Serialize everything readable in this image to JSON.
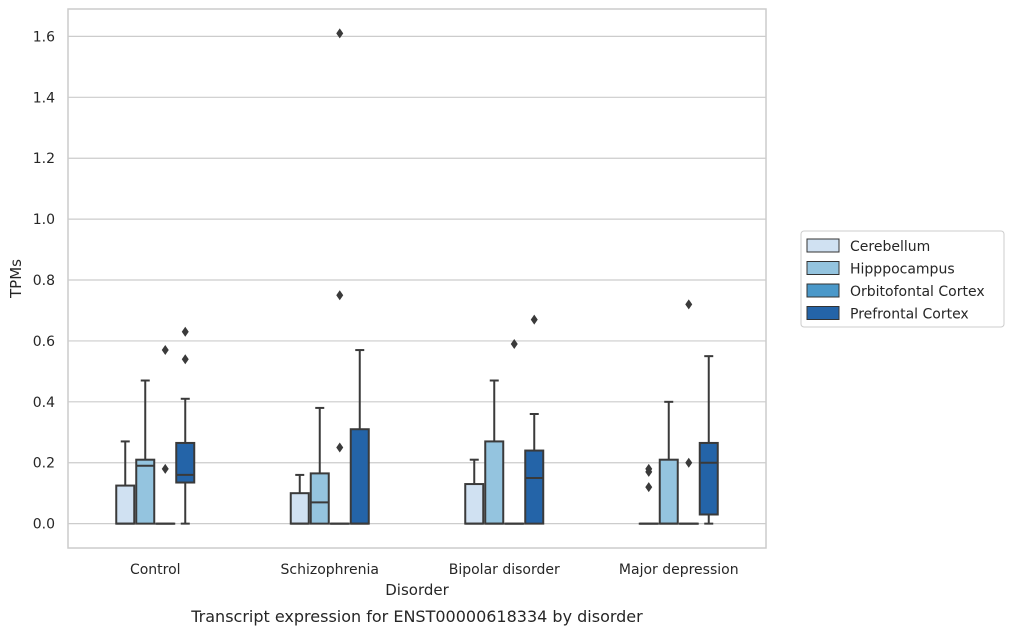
{
  "caption": "Transcript expression for ENST00000618334 by disorder",
  "chart_data": {
    "type": "box",
    "xlabel": "Disorder",
    "ylabel": "TPMs",
    "ylim": [
      -0.08,
      1.69
    ],
    "yticks": [
      0.0,
      0.2,
      0.4,
      0.6,
      0.8,
      1.0,
      1.2,
      1.4,
      1.6
    ],
    "grid": true,
    "legend_placement": "right-center",
    "categories": [
      "Control",
      "Schizophrenia",
      "Bipolar disorder",
      "Major depression"
    ],
    "series": [
      {
        "name": "Cerebellum",
        "color": "#d0e1f2",
        "boxes": [
          {
            "whisker_low": 0.0,
            "q1": 0.0,
            "median": 0.0,
            "q3": 0.125,
            "whisker_high": 0.27,
            "outliers": []
          },
          {
            "whisker_low": 0.0,
            "q1": 0.0,
            "median": 0.0,
            "q3": 0.1,
            "whisker_high": 0.16,
            "outliers": []
          },
          {
            "whisker_low": 0.0,
            "q1": 0.0,
            "median": 0.0,
            "q3": 0.13,
            "whisker_high": 0.21,
            "outliers": []
          },
          {
            "whisker_low": 0.0,
            "q1": 0.0,
            "median": 0.0,
            "q3": 0.0,
            "whisker_high": 0.0,
            "outliers": [
              0.12,
              0.17,
              0.18
            ]
          }
        ]
      },
      {
        "name": "Hipppocampus",
        "color": "#94c4df",
        "boxes": [
          {
            "whisker_low": 0.0,
            "q1": 0.0,
            "median": 0.19,
            "q3": 0.21,
            "whisker_high": 0.47,
            "outliers": []
          },
          {
            "whisker_low": 0.0,
            "q1": 0.0,
            "median": 0.07,
            "q3": 0.165,
            "whisker_high": 0.38,
            "outliers": []
          },
          {
            "whisker_low": 0.0,
            "q1": 0.0,
            "median": 0.0,
            "q3": 0.27,
            "whisker_high": 0.47,
            "outliers": []
          },
          {
            "whisker_low": 0.0,
            "q1": 0.0,
            "median": 0.0,
            "q3": 0.21,
            "whisker_high": 0.4,
            "outliers": []
          }
        ]
      },
      {
        "name": "Orbitofontal Cortex",
        "color": "#4a98c9",
        "boxes": [
          {
            "whisker_low": 0.0,
            "q1": 0.0,
            "median": 0.0,
            "q3": 0.0,
            "whisker_high": 0.0,
            "outliers": [
              0.18,
              0.57
            ]
          },
          {
            "whisker_low": 0.0,
            "q1": 0.0,
            "median": 0.0,
            "q3": 0.0,
            "whisker_high": 0.0,
            "outliers": [
              0.25,
              0.75,
              1.61
            ]
          },
          {
            "whisker_low": 0.0,
            "q1": 0.0,
            "median": 0.0,
            "q3": 0.0,
            "whisker_high": 0.0,
            "outliers": [
              0.59
            ]
          },
          {
            "whisker_low": 0.0,
            "q1": 0.0,
            "median": 0.0,
            "q3": 0.0,
            "whisker_high": 0.0,
            "outliers": [
              0.2,
              0.72
            ]
          }
        ]
      },
      {
        "name": "Prefrontal Cortex",
        "color": "#2464a8",
        "boxes": [
          {
            "whisker_low": 0.0,
            "q1": 0.135,
            "median": 0.16,
            "q3": 0.265,
            "whisker_high": 0.41,
            "outliers": [
              0.54,
              0.63
            ]
          },
          {
            "whisker_low": 0.0,
            "q1": 0.0,
            "median": 0.0,
            "q3": 0.31,
            "whisker_high": 0.57,
            "outliers": []
          },
          {
            "whisker_low": 0.0,
            "q1": 0.0,
            "median": 0.15,
            "q3": 0.24,
            "whisker_high": 0.36,
            "outliers": [
              0.67
            ]
          },
          {
            "whisker_low": 0.0,
            "q1": 0.03,
            "median": 0.2,
            "q3": 0.265,
            "whisker_high": 0.55,
            "outliers": []
          }
        ]
      }
    ]
  }
}
